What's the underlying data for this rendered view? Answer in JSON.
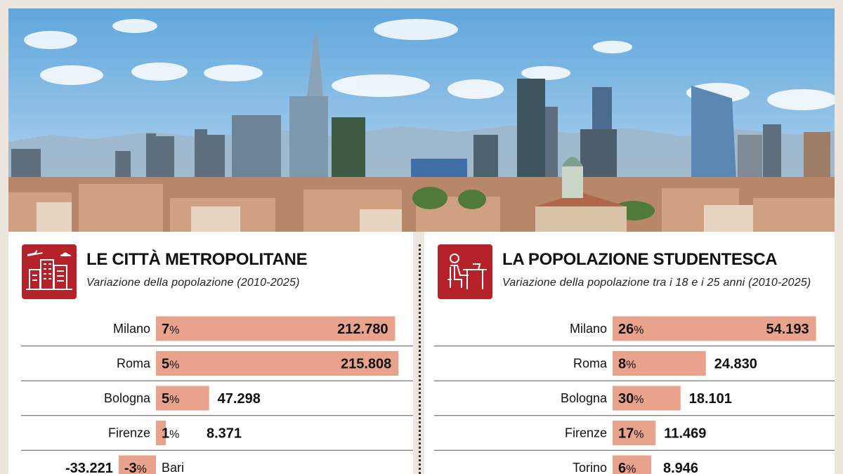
{
  "colors": {
    "bar": "#e9a38d",
    "accent": "#b5222a",
    "rule": "#555555"
  },
  "left_panel": {
    "icon": "city-buildings-icon",
    "title": "LE CITTÀ METROPOLITANE",
    "subtitle": "Variazione della popolazione (2010-2025)"
  },
  "right_panel": {
    "icon": "student-desk-icon",
    "title": "LA POPOLAZIONE STUDENTESCA",
    "subtitle": "Variazione della popolazione tra i 18 e i 25 anni (2010-2025)"
  },
  "chart_data": [
    {
      "type": "bar",
      "title": "LE CITTÀ METROPOLITANE",
      "subtitle": "Variazione della popolazione (2010-2025)",
      "categories": [
        "Milano",
        "Roma",
        "Bologna",
        "Firenze",
        "Bari"
      ],
      "values": [
        212780,
        215808,
        47298,
        8371,
        -33221
      ],
      "labels": [
        "212.780",
        "215.808",
        "47.298",
        "8.371",
        "-33.221"
      ],
      "percent_labels": [
        "7",
        "5",
        "5",
        "1",
        "-3"
      ],
      "xlim": [
        -40000,
        220000
      ]
    },
    {
      "type": "bar",
      "title": "LA POPOLAZIONE STUDENTESCA",
      "subtitle": "Variazione della popolazione tra i 18 e i 25 anni (2010-2025)",
      "categories": [
        "Milano",
        "Roma",
        "Bologna",
        "Firenze",
        "Torino"
      ],
      "values": [
        54193,
        24830,
        18101,
        11469,
        8946
      ],
      "labels": [
        "54.193",
        "24.830",
        "18.101",
        "11.469",
        "8.946"
      ],
      "percent_labels": [
        "26",
        "8",
        "30",
        "17",
        "6"
      ],
      "xlim": [
        0,
        55000
      ]
    }
  ]
}
